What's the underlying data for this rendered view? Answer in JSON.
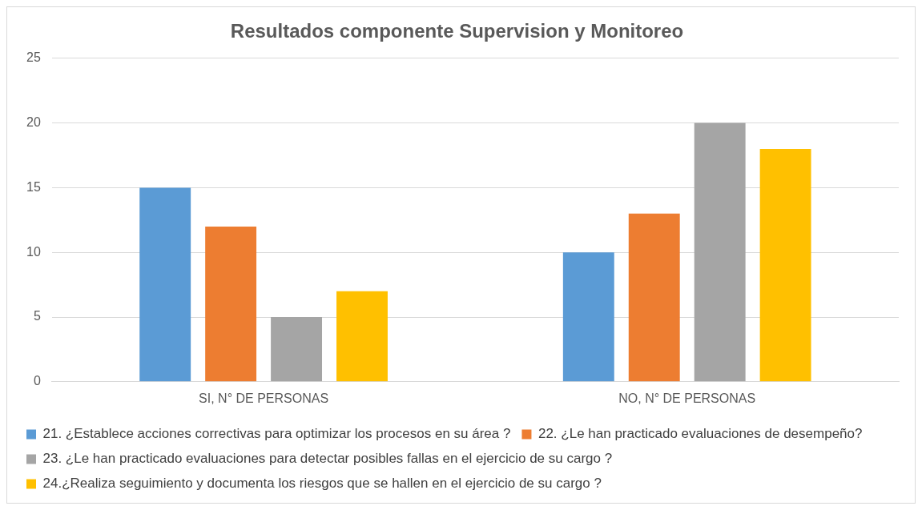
{
  "chart_data": {
    "type": "bar",
    "title": "Resultados componente Supervision y Monitoreo",
    "categories": [
      "SI, N° DE PERSONAS",
      "NO, N° DE PERSONAS"
    ],
    "series": [
      {
        "name": "21. ¿Establece acciones correctivas para optimizar los procesos en su área ?",
        "color": "#5b9bd5",
        "values": [
          15,
          10
        ]
      },
      {
        "name": "22. ¿Le han practicado evaluaciones de desempeño?",
        "color": "#ed7d31",
        "values": [
          12,
          13
        ]
      },
      {
        "name": "23. ¿Le han practicado evaluaciones para detectar posibles fallas en el ejercicio de su cargo ?",
        "color": "#a5a5a5",
        "values": [
          5,
          20
        ]
      },
      {
        "name": "24.¿Realiza seguimiento y documenta los riesgos que se hallen en el ejercicio de su cargo ?",
        "color": "#ffc000",
        "values": [
          7,
          18
        ]
      }
    ],
    "ylim": [
      0,
      25
    ],
    "yticks": [
      0,
      5,
      10,
      15,
      20,
      25
    ],
    "grid": "y",
    "legend": "bottom"
  }
}
